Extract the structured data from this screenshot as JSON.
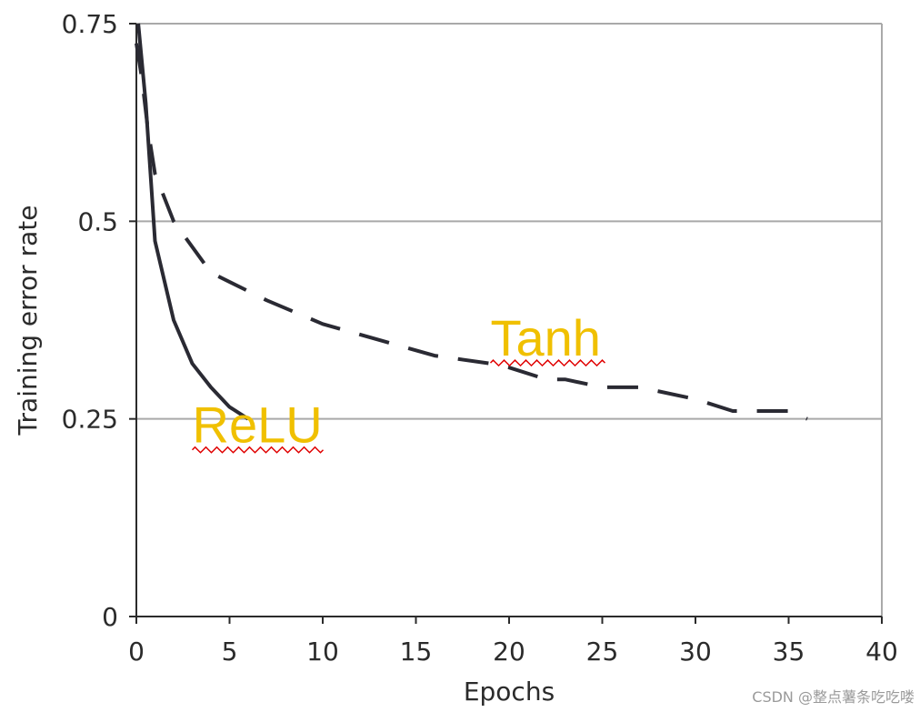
{
  "chart_data": {
    "type": "line",
    "title": "",
    "xlabel": "Epochs",
    "ylabel": "Training error rate",
    "xlim": [
      0,
      40
    ],
    "ylim": [
      0,
      0.75
    ],
    "xticks": [
      0,
      5,
      10,
      15,
      20,
      25,
      30,
      35,
      40
    ],
    "yticks": [
      0,
      0.25,
      0.5,
      0.75
    ],
    "ytick_labels": [
      "0",
      "0.25",
      "0.5",
      "0.75"
    ],
    "grid": "horizontal",
    "legend": "none",
    "series": [
      {
        "name": "ReLU",
        "style": "solid",
        "color": "#2a2a33",
        "x": [
          0.1,
          0.5,
          1,
          2,
          3,
          4,
          5,
          6
        ],
        "y": [
          0.75,
          0.65,
          0.475,
          0.375,
          0.32,
          0.29,
          0.265,
          0.25
        ]
      },
      {
        "name": "Tanh",
        "style": "dashed",
        "color": "#2a2a33",
        "x": [
          0,
          0.3,
          0.6,
          1,
          2,
          4,
          7,
          10,
          13,
          16,
          19,
          20,
          22,
          23,
          25,
          27,
          30,
          32,
          35,
          36
        ],
        "y": [
          0.725,
          0.68,
          0.62,
          0.56,
          0.5,
          0.435,
          0.4,
          0.37,
          0.35,
          0.33,
          0.32,
          0.315,
          0.3,
          0.3,
          0.29,
          0.29,
          0.275,
          0.26,
          0.26,
          0.25
        ]
      }
    ],
    "annotations": [
      {
        "text": "ReLU",
        "x": 3,
        "y": 0.22,
        "color": "#f0c000"
      },
      {
        "text": "Tanh",
        "x": 19,
        "y": 0.33,
        "color": "#f0c000"
      }
    ]
  },
  "watermark": "CSDN @整点薯条吃吃喽"
}
